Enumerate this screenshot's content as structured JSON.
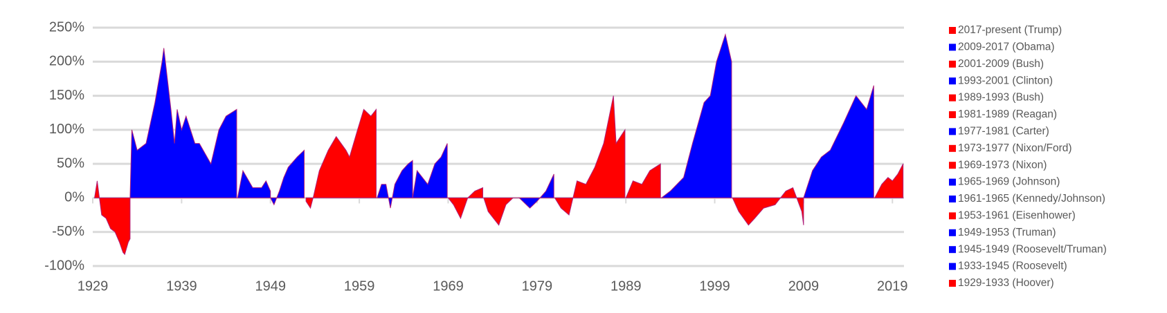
{
  "chart_data": {
    "type": "area",
    "xlim": [
      1929,
      2020.3
    ],
    "xticks": [
      1929,
      1939,
      1949,
      1959,
      1969,
      1979,
      1989,
      1999,
      2009,
      2019
    ],
    "ylim": [
      -100,
      250
    ],
    "yticks": [
      {
        "value": -100,
        "label": "-100%"
      },
      {
        "value": -50,
        "label": "-50%"
      },
      {
        "value": 0,
        "label": "0%"
      },
      {
        "value": 50,
        "label": "50%"
      },
      {
        "value": 100,
        "label": "100%"
      },
      {
        "value": 150,
        "label": "150%"
      },
      {
        "value": 200,
        "label": "200%"
      },
      {
        "value": 250,
        "label": "250%"
      }
    ],
    "grid": true,
    "legend": "right",
    "series": [
      {
        "name": "2017-present (Trump)",
        "color": "#ff0000",
        "x": [
          2017,
          2017.8,
          2018.5,
          2019,
          2019.6,
          2020.2
        ],
        "values": [
          0,
          20,
          30,
          25,
          35,
          50
        ]
      },
      {
        "name": "2009-2017 (Obama)",
        "color": "#0000ff",
        "x": [
          2009,
          2010,
          2011,
          2012,
          2013.5,
          2014.9,
          2016.1,
          2016.9
        ],
        "values": [
          0,
          40,
          60,
          70,
          110,
          150,
          130,
          165
        ]
      },
      {
        "name": "2001-2009 (Bush)",
        "color": "#ff0000",
        "x": [
          2001,
          2001.7,
          2002.8,
          2003.5,
          2004.5,
          2005.8,
          2007,
          2007.8,
          2008.8,
          2009
        ],
        "values": [
          0,
          -20,
          -40,
          -30,
          -15,
          -10,
          10,
          15,
          -20,
          -40
        ]
      },
      {
        "name": "1993-2001 (Clinton)",
        "color": "#0000ff",
        "x": [
          1993,
          1994,
          1995.5,
          1996.5,
          1997.8,
          1998.5,
          1999.2,
          2000.2,
          2000.9
        ],
        "values": [
          0,
          10,
          30,
          80,
          140,
          150,
          200,
          240,
          200
        ]
      },
      {
        "name": "1989-1993 (Bush)",
        "color": "#ff0000",
        "x": [
          1989,
          1989.8,
          1990.8,
          1991.7,
          1992.9
        ],
        "values": [
          0,
          25,
          20,
          40,
          50
        ]
      },
      {
        "name": "1981-1989 (Reagan)",
        "color": "#ff0000",
        "x": [
          1981,
          1981.7,
          1982.6,
          1983.5,
          1984.5,
          1985.5,
          1986.5,
          1987.6,
          1987.9,
          1988.9
        ],
        "values": [
          0,
          -15,
          -25,
          25,
          20,
          45,
          80,
          150,
          80,
          100
        ]
      },
      {
        "name": "1977-1981 (Carter)",
        "color": "#0000ff",
        "x": [
          1977,
          1978.2,
          1979,
          1980,
          1980.9
        ],
        "values": [
          0,
          -15,
          -5,
          10,
          35
        ]
      },
      {
        "name": "1973-1977 (Nixon/Ford)",
        "color": "#ff0000",
        "x": [
          1973,
          1973.5,
          1974.7,
          1975.5,
          1976.3,
          1977
        ],
        "values": [
          0,
          -20,
          -40,
          -10,
          0,
          0
        ]
      },
      {
        "name": "1969-1973 (Nixon)",
        "color": "#ff0000",
        "x": [
          1969,
          1969.6,
          1970.4,
          1971.2,
          1972,
          1972.9
        ],
        "values": [
          0,
          -10,
          -30,
          0,
          10,
          15
        ]
      },
      {
        "name": "1965-1969 (Johnson)",
        "color": "#0000ff",
        "x": [
          1965,
          1965.5,
          1966.7,
          1967.5,
          1968.2,
          1968.9
        ],
        "values": [
          0,
          40,
          20,
          50,
          60,
          80
        ]
      },
      {
        "name": "1961-1965 (Kennedy/Johnson)",
        "color": "#0000ff",
        "x": [
          1961,
          1961.5,
          1962,
          1962.5,
          1963,
          1963.8,
          1964.5,
          1965
        ],
        "values": [
          0,
          20,
          20,
          -15,
          20,
          40,
          50,
          55
        ]
      },
      {
        "name": "1953-1961 (Eisenhower)",
        "color": "#ff0000",
        "x": [
          1953,
          1953.5,
          1953.8,
          1954.5,
          1955.5,
          1956.4,
          1957.5,
          1957.9,
          1958.8,
          1959.5,
          1960.3,
          1960.9
        ],
        "values": [
          -5,
          -15,
          0,
          40,
          70,
          90,
          70,
          60,
          100,
          130,
          120,
          130
        ]
      },
      {
        "name": "1949-1953 (Truman)",
        "color": "#0000ff",
        "x": [
          1949,
          1949.4,
          1950,
          1950.5,
          1951,
          1952,
          1952.8
        ],
        "values": [
          0,
          -10,
          10,
          30,
          45,
          60,
          70
        ]
      },
      {
        "name": "1945-1949 (Roosevelt/Truman)",
        "color": "#0000ff",
        "x": [
          1945.3,
          1945.9,
          1947,
          1948,
          1948.5,
          1949
        ],
        "values": [
          0,
          40,
          15,
          15,
          25,
          10
        ]
      },
      {
        "name": "1933-1945 (Roosevelt)",
        "color": "#0000ff",
        "x": [
          1933.2,
          1933.4,
          1934,
          1935,
          1936,
          1936.8,
          1937,
          1937.8,
          1938.2,
          1938.5,
          1939,
          1939.5,
          1940.5,
          1941,
          1942.3,
          1943.2,
          1944,
          1945.2
        ],
        "values": [
          0,
          100,
          70,
          80,
          140,
          200,
          220,
          130,
          80,
          130,
          100,
          120,
          80,
          80,
          50,
          100,
          120,
          130
        ]
      },
      {
        "name": "1929-1933 (Hoover)",
        "color": "#ff0000",
        "x": [
          1929.2,
          1929.5,
          1929.7,
          1930,
          1930.5,
          1931,
          1931.5,
          1932,
          1932.4,
          1932.6,
          1933,
          1933.2
        ],
        "values": [
          0,
          25,
          5,
          -25,
          -30,
          -45,
          -50,
          -65,
          -80,
          -83,
          -65,
          -60
        ]
      }
    ]
  }
}
